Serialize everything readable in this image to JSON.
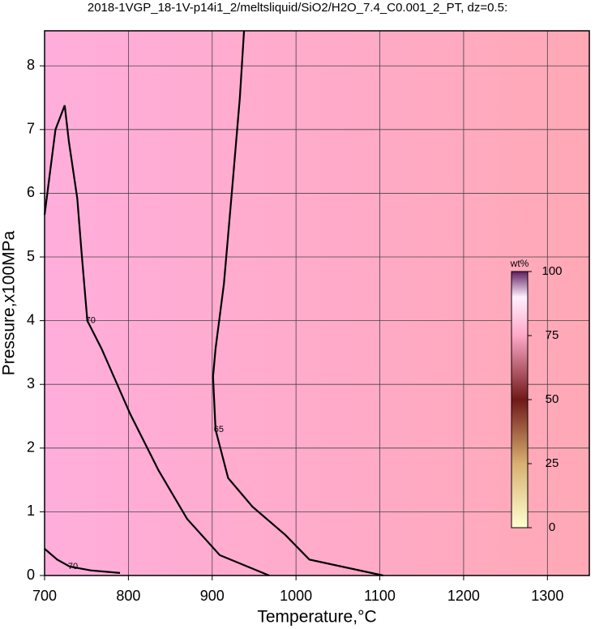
{
  "chart_data": {
    "type": "contour",
    "title": "2018-1VGP_18-1V-p14i1_2/meltsliquid/SiO2/H2O_7.4_C0.001_2_PT, dz=0.5:",
    "x_label": "Temperature,°C",
    "y_label": "Pressure,x100MPa",
    "xlim": [
      700,
      1350
    ],
    "ylim": [
      0,
      8.55
    ],
    "xticks": [
      700,
      800,
      900,
      1000,
      1100,
      1200,
      1300
    ],
    "yticks": [
      0,
      1,
      2,
      3,
      4,
      5,
      6,
      7,
      8
    ],
    "grid": true,
    "series": [
      {
        "name": "70",
        "color": "#000000",
        "x": [
          700,
          713,
          724,
          729,
          739,
          744,
          751,
          768,
          802,
          836,
          870,
          909,
          968
        ],
        "values": [
          5.66,
          7.0,
          7.38,
          6.81,
          5.92,
          5.09,
          4.0,
          3.56,
          2.54,
          1.65,
          0.89,
          0.32,
          0
        ]
      },
      {
        "name": "65",
        "color": "#000000",
        "x": [
          938,
          933,
          924,
          914,
          904,
          901,
          904,
          919,
          948,
          987,
          1016,
          1104
        ],
        "values": [
          8.55,
          7.5,
          6.1,
          4.58,
          3.56,
          3.12,
          2.29,
          1.53,
          1.08,
          0.64,
          0.25,
          0
        ]
      },
      {
        "name": "70",
        "color": "#000000",
        "x": [
          700,
          715,
          730,
          755,
          790
        ],
        "values": [
          0.42,
          0.25,
          0.14,
          0.08,
          0.04
        ]
      }
    ],
    "colorbar": {
      "label": "wt%",
      "lim": [
        0,
        100
      ],
      "ticks": [
        0,
        25,
        50,
        75,
        100
      ]
    }
  }
}
